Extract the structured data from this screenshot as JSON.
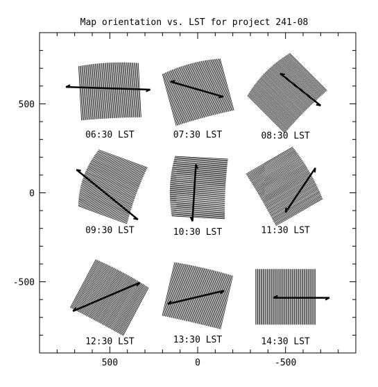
{
  "chart_data": {
    "type": "diagram",
    "title": "Map orientation vs. LST for project 241-08",
    "xlim": [
      900,
      -900
    ],
    "ylim": [
      -900,
      900
    ],
    "x_ticks": [
      {
        "value": 500,
        "label": "500"
      },
      {
        "value": 0,
        "label": "0"
      },
      {
        "value": -500,
        "label": "-500"
      }
    ],
    "y_ticks": [
      {
        "value": 500,
        "label": "500"
      },
      {
        "value": 0,
        "label": "0"
      },
      {
        "value": -500,
        "label": "-500"
      }
    ],
    "panels": [
      {
        "label": "06:30 LST",
        "center": [
          500,
          575
        ],
        "angle": -3,
        "curv": 0.3,
        "endpoints": [
          [
            750,
            595
          ],
          [
            270,
            580
          ]
        ]
      },
      {
        "label": "07:30 LST",
        "center": [
          0,
          575
        ],
        "angle": -15,
        "curv": 0.45,
        "endpoints": [
          [
            155,
            625
          ],
          [
            -145,
            540
          ]
        ]
      },
      {
        "label": "08:30 LST",
        "center": [
          -500,
          570
        ],
        "angle": -45,
        "curv": 0.6,
        "endpoints": [
          [
            -470,
            670
          ],
          [
            -700,
            490
          ]
        ]
      },
      {
        "label": "09:30 LST",
        "center": [
          500,
          40
        ],
        "angle": -70,
        "curv": 0.8,
        "endpoints": [
          [
            690,
            130
          ],
          [
            340,
            -150
          ]
        ]
      },
      {
        "label": "10:30 LST",
        "center": [
          0,
          30
        ],
        "angle": -87,
        "curv": 0.55,
        "endpoints": [
          [
            10,
            160
          ],
          [
            30,
            -160
          ]
        ]
      },
      {
        "label": "11:30 LST",
        "center": [
          -500,
          40
        ],
        "angle": 60,
        "curv": 0.35,
        "endpoints": [
          [
            -670,
            140
          ],
          [
            -500,
            -110
          ]
        ]
      },
      {
        "label": "12:30 LST",
        "center": [
          500,
          -585
        ],
        "angle": 28,
        "curv": 0.2,
        "endpoints": [
          [
            330,
            -505
          ],
          [
            710,
            -665
          ]
        ]
      },
      {
        "label": "13:30 LST",
        "center": [
          0,
          -575
        ],
        "angle": 13,
        "curv": 0.15,
        "endpoints": [
          [
            -150,
            -550
          ],
          [
            170,
            -625
          ]
        ]
      },
      {
        "label": "14:30 LST",
        "center": [
          -500,
          -585
        ],
        "angle": 0,
        "curv": 0.0,
        "endpoints": [
          [
            -750,
            -590
          ],
          [
            -430,
            -590
          ]
        ]
      }
    ]
  }
}
